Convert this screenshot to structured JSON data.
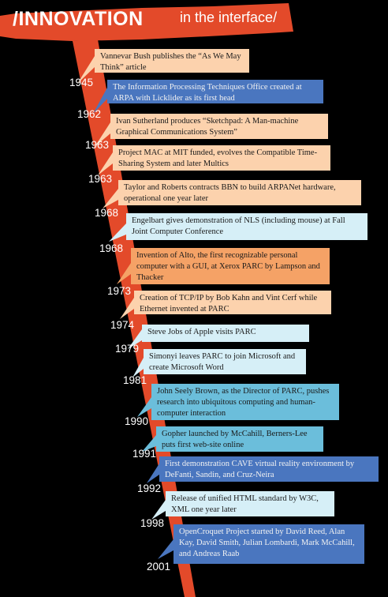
{
  "header": {
    "title": "/INNOVATION",
    "subtitle": "in the interface/"
  },
  "colors": {
    "ribbon": "#e34a2a",
    "orange": "#f5a266",
    "peach": "#fcd2ad",
    "blue": "#4a76bf",
    "lightblue": "#d6eff7",
    "cyan": "#6bbedb"
  },
  "events": [
    {
      "text": "Vannevar Bush publishes the “As We May Think” article",
      "year": "1945",
      "color": "peach"
    },
    {
      "text": "The Information Processing Techniques Office created at ARPA with Licklider as its first head",
      "year": "1962",
      "color": "blue"
    },
    {
      "text": "Ivan Sutherland produces “Sketchpad: A Man-machine Graphical Communications System”",
      "year": "1963",
      "color": "peach"
    },
    {
      "text": "Project MAC at MIT funded, evolves the Compatible Time-Sharing System and later Multics",
      "year": "1963",
      "color": "peach"
    },
    {
      "text": "Taylor and  Roberts contracts BBN to build ARPANet hardware, operational one year later",
      "year": "1968",
      "color": "peach"
    },
    {
      "text": "Engelbart gives demonstration of NLS (including mouse) at Fall Joint Computer Conference",
      "year": "1968",
      "color": "lightblue"
    },
    {
      "text": "Invention of Alto, the first recognizable personal computer with a GUI, at Xerox  PARC by Lampson and Thacker",
      "year": "1973",
      "color": "orange"
    },
    {
      "text": "Creation of TCP/IP by Bob Kahn and Vint Cerf while Ethernet invented at PARC",
      "year": "1974",
      "color": "peach"
    },
    {
      "text": "Steve Jobs of Apple visits PARC",
      "year": "1979",
      "color": "lightblue"
    },
    {
      "text": "Simonyi leaves PARC to join Microsoft and create Microsoft Word",
      "year": "1981",
      "color": "lightblue"
    },
    {
      "text": "John Seely Brown, as the Director of PARC, pushes research into ubiquitous computing and human-computer interaction",
      "year": "1990",
      "color": "cyan"
    },
    {
      "text": "Gopher launched by McCahill, Berners-Lee puts first web-site online",
      "year": "1991",
      "color": "cyan"
    },
    {
      "text": "First demonstration CAVE virtual reality environment by DeFanti, Sandin, and Cruz-Neira",
      "year": "1992",
      "color": "blue"
    },
    {
      "text": "Release of unified HTML standard by W3C, XML one year later",
      "year": "1998",
      "color": "lightblue"
    },
    {
      "text": "OpenCroquet Project started by David Reed, Alan Kay, David Smith, Julian Lombardi, Mark McCahill, and Andreas Raab",
      "year": "2001",
      "color": "blue"
    }
  ]
}
